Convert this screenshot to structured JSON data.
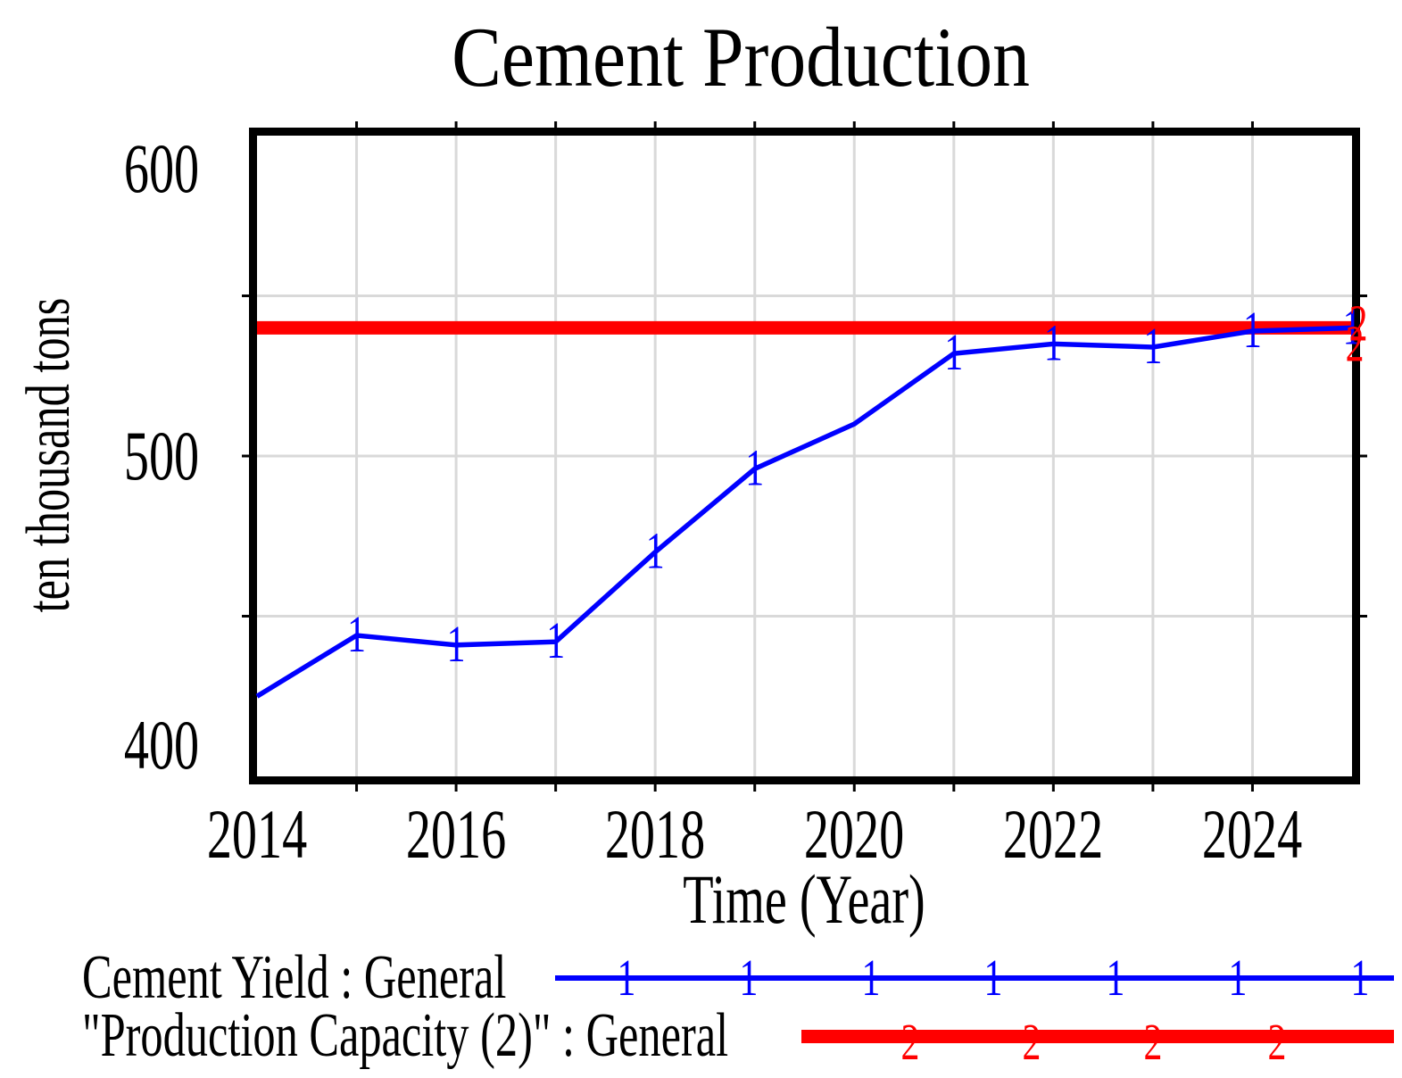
{
  "title": "Cement Production",
  "y_axis": {
    "label": "ten thousand tons",
    "ticks": [
      600,
      500,
      400
    ]
  },
  "x_axis": {
    "label": "Time (Year)",
    "ticks": [
      2014,
      2016,
      2018,
      2020,
      2022,
      2024
    ]
  },
  "colors": {
    "series1_blue": "#0000ff",
    "series2_red": "#ff0000",
    "grid": "#d9d9d9",
    "frame": "#000000"
  },
  "legend": [
    {
      "label": "Cement Yield : General",
      "marker": "1",
      "color": "#0000ff"
    },
    {
      "label": "\"Production Capacity (2)\" : General",
      "marker": "2",
      "color": "#ff0000"
    }
  ],
  "chart_data": {
    "type": "line",
    "title": "Cement Production",
    "xlabel": "Time (Year)",
    "ylabel": "ten thousand tons",
    "x": [
      2014,
      2015,
      2016,
      2017,
      2018,
      2019,
      2020,
      2021,
      2022,
      2023,
      2024,
      2025
    ],
    "series": [
      {
        "name": "Cement Yield : General",
        "color": "#0000ff",
        "marker": "1",
        "values": [
          425,
          444,
          441,
          442,
          470,
          496,
          510,
          532,
          535,
          534,
          539,
          540
        ],
        "marker_x": [
          2015,
          2016,
          2017,
          2018,
          2019,
          2021,
          2022,
          2023,
          2024,
          2025
        ]
      },
      {
        "name": "\"Production Capacity (2)\" : General",
        "color": "#ff0000",
        "marker": "2",
        "values": [
          540,
          540,
          540,
          540,
          540,
          540,
          540,
          540,
          540,
          540,
          540,
          540
        ],
        "marker_x": [
          2025
        ]
      }
    ],
    "xlim": [
      2014,
      2025
    ],
    "ylim": [
      400,
      600
    ],
    "grid": true,
    "grid_x": [
      2015,
      2016,
      2017,
      2018,
      2019,
      2020,
      2021,
      2022,
      2023,
      2024
    ],
    "grid_y": [
      450,
      500,
      550
    ],
    "legend_position": "bottom-left"
  }
}
